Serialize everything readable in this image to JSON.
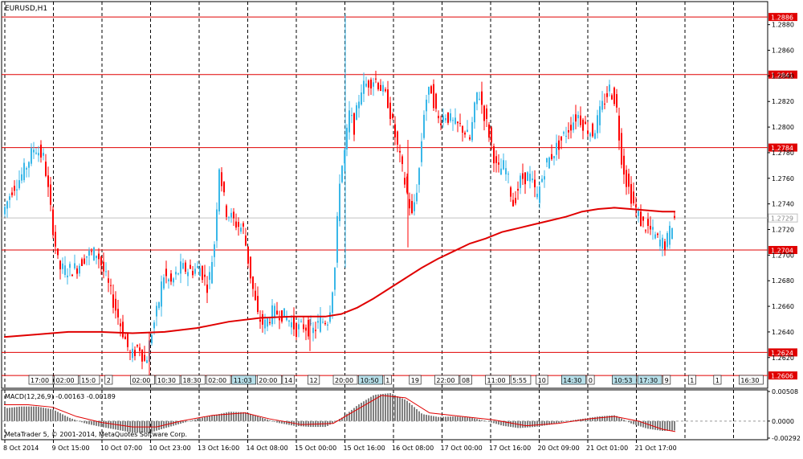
{
  "chart_data": [
    {
      "type": "candlestick",
      "title": "EURUSD,H1",
      "ylim": [
        1.2596,
        1.2898
      ],
      "y_ticks": [
        "1.2880",
        "1.2860",
        "1.2840",
        "1.2820",
        "1.2800",
        "1.2780",
        "1.2760",
        "1.2740",
        "1.2720",
        "1.2700",
        "1.2680",
        "1.2660",
        "1.2640",
        "1.2620"
      ],
      "horizontal_levels": [
        {
          "label": "1.2886",
          "value": 1.2886
        },
        {
          "label": "1.2841",
          "value": 1.2841
        },
        {
          "label": "1.2784",
          "value": 1.2784
        },
        {
          "label": "1.2704",
          "value": 1.2704
        },
        {
          "label": "1.2624",
          "value": 1.2624
        },
        {
          "label": "1.2606",
          "value": 1.2606
        }
      ],
      "current_price_label": "1.2729",
      "current_price": 1.2729,
      "colors": {
        "bull": "#39b7e8",
        "bear": "#ff0000",
        "ma": "#e00000",
        "level": "#e00000",
        "grid": "#000000",
        "current": "#c0c0c0"
      },
      "ma_points": [
        [
          0,
          1.2636
        ],
        [
          40,
          1.2638
        ],
        [
          80,
          1.264
        ],
        [
          120,
          1.264
        ],
        [
          160,
          1.2639
        ],
        [
          200,
          1.264
        ],
        [
          240,
          1.2643
        ],
        [
          280,
          1.2648
        ],
        [
          320,
          1.2651
        ],
        [
          360,
          1.2652
        ],
        [
          400,
          1.2652
        ],
        [
          420,
          1.2654
        ],
        [
          440,
          1.2659
        ],
        [
          460,
          1.2666
        ],
        [
          480,
          1.2674
        ],
        [
          500,
          1.2682
        ],
        [
          520,
          1.269
        ],
        [
          540,
          1.2697
        ],
        [
          560,
          1.2703
        ],
        [
          580,
          1.2709
        ],
        [
          600,
          1.2713
        ],
        [
          620,
          1.2718
        ],
        [
          640,
          1.2721
        ],
        [
          660,
          1.2724
        ],
        [
          680,
          1.2727
        ],
        [
          700,
          1.273
        ],
        [
          720,
          1.2734
        ],
        [
          740,
          1.2736
        ],
        [
          760,
          1.2737
        ],
        [
          780,
          1.2736
        ],
        [
          800,
          1.2735
        ],
        [
          820,
          1.2734
        ],
        [
          836,
          1.2734
        ]
      ],
      "candle_path": [
        [
          0,
          1.2732
        ],
        [
          12,
          1.2752
        ],
        [
          22,
          1.276
        ],
        [
          30,
          1.277
        ],
        [
          40,
          1.2785
        ],
        [
          52,
          1.2775
        ],
        [
          60,
          1.2735
        ],
        [
          70,
          1.269
        ],
        [
          80,
          1.2688
        ],
        [
          92,
          1.269
        ],
        [
          104,
          1.27
        ],
        [
          118,
          1.2702
        ],
        [
          130,
          1.268
        ],
        [
          140,
          1.266
        ],
        [
          150,
          1.264
        ],
        [
          160,
          1.262
        ],
        [
          170,
          1.263
        ],
        [
          178,
          1.2615
        ],
        [
          186,
          1.264
        ],
        [
          194,
          1.266
        ],
        [
          200,
          1.2685
        ],
        [
          210,
          1.2678
        ],
        [
          222,
          1.269
        ],
        [
          234,
          1.2688
        ],
        [
          246,
          1.269
        ],
        [
          256,
          1.2675
        ],
        [
          264,
          1.271
        ],
        [
          270,
          1.277
        ],
        [
          278,
          1.2735
        ],
        [
          290,
          1.2725
        ],
        [
          300,
          1.272
        ],
        [
          310,
          1.268
        ],
        [
          318,
          1.2652
        ],
        [
          326,
          1.2645
        ],
        [
          336,
          1.2655
        ],
        [
          346,
          1.2655
        ],
        [
          356,
          1.265
        ],
        [
          366,
          1.2642
        ],
        [
          376,
          1.2645
        ],
        [
          386,
          1.264
        ],
        [
          396,
          1.2648
        ],
        [
          406,
          1.265
        ],
        [
          414,
          1.269
        ],
        [
          420,
          1.276
        ],
        [
          426,
          1.278
        ],
        [
          432,
          1.281
        ],
        [
          438,
          1.28
        ],
        [
          446,
          1.283
        ],
        [
          456,
          1.2835
        ],
        [
          464,
          1.2838
        ],
        [
          472,
          1.283
        ],
        [
          480,
          1.282
        ],
        [
          490,
          1.279
        ],
        [
          500,
          1.276
        ],
        [
          510,
          1.273
        ],
        [
          518,
          1.276
        ],
        [
          526,
          1.282
        ],
        [
          534,
          1.283
        ],
        [
          542,
          1.2805
        ],
        [
          552,
          1.281
        ],
        [
          562,
          1.2802
        ],
        [
          572,
          1.28
        ],
        [
          582,
          1.279
        ],
        [
          592,
          1.283
        ],
        [
          600,
          1.281
        ],
        [
          608,
          1.279
        ],
        [
          616,
          1.2765
        ],
        [
          626,
          1.277
        ],
        [
          636,
          1.274
        ],
        [
          646,
          1.276
        ],
        [
          656,
          1.2762
        ],
        [
          666,
          1.2745
        ],
        [
          676,
          1.277
        ],
        [
          686,
          1.278
        ],
        [
          696,
          1.279
        ],
        [
          706,
          1.28
        ],
        [
          716,
          1.281
        ],
        [
          726,
          1.28
        ],
        [
          736,
          1.2795
        ],
        [
          746,
          1.2815
        ],
        [
          756,
          1.283
        ],
        [
          764,
          1.282
        ],
        [
          770,
          1.278
        ],
        [
          776,
          1.276
        ],
        [
          786,
          1.274
        ],
        [
          796,
          1.2725
        ],
        [
          806,
          1.272
        ],
        [
          816,
          1.2712
        ],
        [
          826,
          1.2708
        ],
        [
          836,
          1.2729
        ]
      ],
      "x_tick_labels": [
        "8 Oct 2014",
        "9 Oct 15:00",
        "10 Oct 07:00",
        "10 Oct 23:00",
        "13 Oct 16:00",
        "14 Oct 08:00",
        "15 Oct 00:00",
        "15 Oct 16:00",
        "16 Oct 08:00",
        "17 Oct 00:00",
        "17 Oct 16:00",
        "20 Oct 09:00",
        "21 Oct 01:00",
        "21 Oct 17:00"
      ],
      "timeline_labels": [
        "17:00",
        "02:00",
        "15:0",
        "2",
        "02:00",
        "10:30",
        "18:30",
        "02:00",
        "11:03",
        "20:00",
        "14",
        "12",
        "20:00",
        "10:50",
        "1",
        "19",
        "22:00",
        "08",
        "11:00",
        "5:55",
        "10",
        "14:30",
        "0",
        "10:53",
        "17:30",
        "9",
        "1",
        "1",
        "16:30"
      ],
      "grid": true
    },
    {
      "type": "macd",
      "title": "MACD(12,26,9) -0.00163 -0.00189",
      "ylim": [
        -0.00292,
        0.00508
      ],
      "y_ticks": [
        "0.00508",
        "0.0000",
        "-0.00292"
      ],
      "histogram": [
        [
          0,
          0.0022
        ],
        [
          20,
          0.0025
        ],
        [
          40,
          0.0025
        ],
        [
          60,
          0.002
        ],
        [
          80,
          0.0006
        ],
        [
          100,
          -0.0004
        ],
        [
          120,
          -0.001
        ],
        [
          140,
          -0.0015
        ],
        [
          160,
          -0.002
        ],
        [
          180,
          -0.002
        ],
        [
          200,
          -0.0012
        ],
        [
          220,
          -0.0004
        ],
        [
          240,
          0.0004
        ],
        [
          260,
          0.001
        ],
        [
          280,
          0.0016
        ],
        [
          300,
          0.0015
        ],
        [
          320,
          0.0006
        ],
        [
          340,
          -0.0003
        ],
        [
          360,
          -0.0008
        ],
        [
          380,
          -0.001
        ],
        [
          400,
          -0.001
        ],
        [
          420,
          0.0006
        ],
        [
          440,
          0.0028
        ],
        [
          460,
          0.0045
        ],
        [
          480,
          0.0048
        ],
        [
          500,
          0.0036
        ],
        [
          520,
          0.0012
        ],
        [
          540,
          0.0007
        ],
        [
          560,
          0.0008
        ],
        [
          580,
          0.0006
        ],
        [
          600,
          0.0
        ],
        [
          620,
          -0.0008
        ],
        [
          640,
          -0.0012
        ],
        [
          660,
          -0.001
        ],
        [
          680,
          -0.0006
        ],
        [
          700,
          0.0
        ],
        [
          720,
          0.0004
        ],
        [
          740,
          0.0008
        ],
        [
          760,
          0.001
        ],
        [
          780,
          -0.0004
        ],
        [
          800,
          -0.0013
        ],
        [
          820,
          -0.0017
        ],
        [
          836,
          -0.0016
        ]
      ],
      "signal": [
        [
          0,
          0.0028
        ],
        [
          30,
          0.0028
        ],
        [
          60,
          0.0024
        ],
        [
          90,
          0.0008
        ],
        [
          120,
          -0.0002
        ],
        [
          160,
          -0.001
        ],
        [
          190,
          -0.001
        ],
        [
          220,
          0.0
        ],
        [
          260,
          0.001
        ],
        [
          300,
          0.0014
        ],
        [
          330,
          0.0004
        ],
        [
          370,
          -0.0006
        ],
        [
          410,
          -0.0004
        ],
        [
          440,
          0.002
        ],
        [
          470,
          0.0044
        ],
        [
          500,
          0.004
        ],
        [
          530,
          0.0014
        ],
        [
          570,
          0.0008
        ],
        [
          610,
          0.0002
        ],
        [
          650,
          -0.0008
        ],
        [
          690,
          -0.0004
        ],
        [
          730,
          0.0004
        ],
        [
          760,
          0.0008
        ],
        [
          790,
          0.0
        ],
        [
          820,
          -0.0014
        ],
        [
          836,
          -0.0018
        ]
      ]
    }
  ],
  "footer": {
    "copyright": "MetaTrader 5, © 2001-2014, MetaQuotes Software Corp."
  }
}
